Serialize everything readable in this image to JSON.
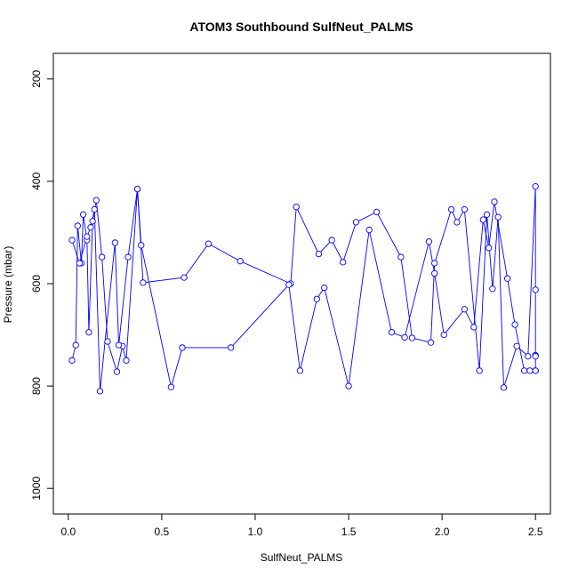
{
  "chart_data": {
    "type": "line",
    "title": "ATOM3 Southbound SulfNeut_PALMS",
    "xlabel": "SulfNeut_PALMS",
    "ylabel": "Pressure (mbar)",
    "xlim": [
      -0.08,
      2.58
    ],
    "ylim": [
      1050,
      150
    ],
    "y_reversed": true,
    "x_ticks": [
      0.0,
      0.5,
      1.0,
      1.5,
      2.0,
      2.5
    ],
    "x_tick_labels": [
      "0.0",
      "0.5",
      "1.0",
      "1.5",
      "2.0",
      "2.5"
    ],
    "y_ticks": [
      200,
      400,
      600,
      800,
      1000
    ],
    "y_tick_labels": [
      "200",
      "400",
      "600",
      "800",
      "1000"
    ],
    "series_color": "#0000ff",
    "marker": "open-circle",
    "grid": false,
    "legend": "none",
    "series": [
      {
        "x": [
          0.02,
          0.04,
          0.05,
          0.07,
          0.08,
          0.1,
          0.11,
          0.13,
          0.15,
          0.18,
          0.21,
          0.26,
          0.29,
          0.31,
          0.37,
          0.4,
          0.62,
          0.75,
          0.92,
          1.19,
          1.22,
          1.34,
          1.41,
          1.47,
          1.54,
          1.65,
          1.78,
          1.84,
          1.94,
          1.96,
          2.05,
          2.08,
          2.12,
          2.2,
          2.24,
          2.27,
          2.3,
          2.33,
          2.4,
          2.46,
          2.5,
          2.5,
          2.5,
          2.5,
          2.5
        ],
        "y": [
          750,
          720,
          487,
          560,
          465,
          515,
          695,
          478,
          437,
          548,
          713,
          772,
          722,
          750,
          415,
          598,
          588,
          522,
          556,
          600,
          450,
          542,
          515,
          558,
          480,
          460,
          548,
          706,
          715,
          560,
          455,
          480,
          455,
          770,
          465,
          610,
          470,
          803,
          722,
          742,
          410,
          612,
          740,
          742,
          770
        ]
      },
      {
        "x": [
          0.02,
          0.06,
          0.1,
          0.12,
          0.14,
          0.17,
          0.25,
          0.27,
          0.32,
          0.37,
          0.39,
          0.55,
          0.61,
          0.87,
          1.18,
          1.24,
          1.33,
          1.37,
          1.5,
          1.61,
          1.73,
          1.8,
          1.93,
          1.96,
          2.01,
          2.12,
          2.17,
          2.22,
          2.25,
          2.28,
          2.35,
          2.39,
          2.44,
          2.47,
          2.5
        ],
        "y": [
          515,
          560,
          508,
          490,
          455,
          810,
          520,
          720,
          548,
          415,
          525,
          802,
          725,
          725,
          602,
          770,
          630,
          608,
          800,
          495,
          695,
          705,
          518,
          580,
          700,
          650,
          685,
          475,
          530,
          440,
          590,
          680,
          770,
          770,
          770
        ]
      }
    ]
  }
}
